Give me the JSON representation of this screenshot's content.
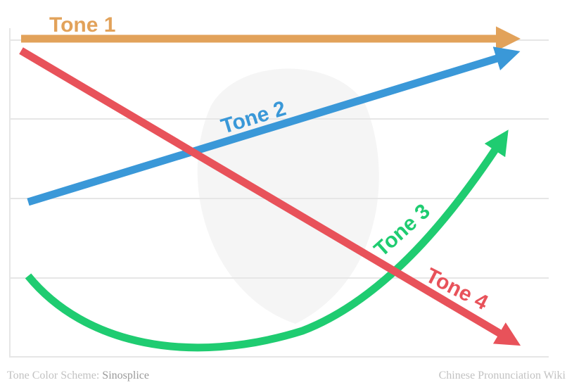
{
  "tones": [
    {
      "label": "Tone 1",
      "color": "#E2A25A"
    },
    {
      "label": "Tone 2",
      "color": "#3A98D8"
    },
    {
      "label": "Tone 3",
      "color": "#1FCC71"
    },
    {
      "label": "Tone 4",
      "color": "#E8525A"
    }
  ],
  "footer": {
    "left_prefix": "Tone Color Scheme: ",
    "left_brand": "Sinosplice",
    "right": "Chinese Pronunciation Wiki"
  },
  "grid_color": "#e6e6e6",
  "watermark_color": "#f5f5f5"
}
